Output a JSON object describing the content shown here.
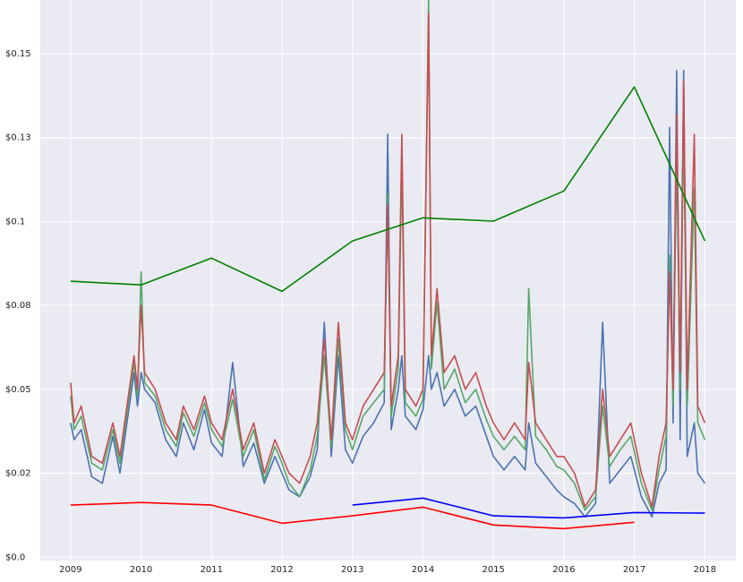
{
  "chart_data": {
    "type": "line",
    "xlim": [
      2008.57,
      2018.44
    ],
    "ylim": [
      -0.001,
      0.166
    ],
    "xticks": [
      2009,
      2010,
      2011,
      2012,
      2013,
      2014,
      2015,
      2016,
      2017,
      2018
    ],
    "yticks": [
      {
        "value": 0,
        "label": "$0.0"
      },
      {
        "value": 0.025,
        "label": "$0.02"
      },
      {
        "value": 0.05,
        "label": "$0.05"
      },
      {
        "value": 0.075,
        "label": "$0.08"
      },
      {
        "value": 0.1,
        "label": "$0.1"
      },
      {
        "value": 0.125,
        "label": "$0.13"
      },
      {
        "value": 0.15,
        "label": "$0.15"
      }
    ],
    "grid": true,
    "series": [
      {
        "color": "#4c72b0",
        "x": [
          2009.0,
          2009.05,
          2009.15,
          2009.3,
          2009.45,
          2009.6,
          2009.7,
          2009.8,
          2009.9,
          2009.95,
          2010.0,
          2010.05,
          2010.2,
          2010.35,
          2010.5,
          2010.6,
          2010.75,
          2010.9,
          2011.0,
          2011.15,
          2011.3,
          2011.45,
          2011.6,
          2011.75,
          2011.9,
          2012.0,
          2012.1,
          2012.25,
          2012.4,
          2012.5,
          2012.6,
          2012.7,
          2012.8,
          2012.9,
          2013.0,
          2013.15,
          2013.3,
          2013.45,
          2013.5,
          2013.55,
          2013.65,
          2013.7,
          2013.75,
          2013.9,
          2014.0,
          2014.08,
          2014.12,
          2014.2,
          2014.3,
          2014.45,
          2014.6,
          2014.75,
          2014.9,
          2015.0,
          2015.15,
          2015.3,
          2015.45,
          2015.5,
          2015.6,
          2015.75,
          2015.9,
          2016.0,
          2016.15,
          2016.3,
          2016.45,
          2016.55,
          2016.65,
          2016.8,
          2016.95,
          2017.1,
          2017.25,
          2017.35,
          2017.45,
          2017.5,
          2017.55,
          2017.6,
          2017.65,
          2017.7,
          2017.75,
          2017.85,
          2017.9,
          2018.0
        ],
        "values": [
          0.04,
          0.035,
          0.038,
          0.024,
          0.022,
          0.036,
          0.025,
          0.04,
          0.055,
          0.045,
          0.055,
          0.05,
          0.046,
          0.035,
          0.03,
          0.04,
          0.032,
          0.044,
          0.034,
          0.03,
          0.058,
          0.027,
          0.034,
          0.022,
          0.03,
          0.025,
          0.02,
          0.018,
          0.024,
          0.032,
          0.07,
          0.03,
          0.06,
          0.032,
          0.028,
          0.036,
          0.04,
          0.046,
          0.126,
          0.038,
          0.05,
          0.06,
          0.042,
          0.038,
          0.044,
          0.06,
          0.05,
          0.055,
          0.045,
          0.05,
          0.042,
          0.045,
          0.036,
          0.03,
          0.026,
          0.03,
          0.026,
          0.04,
          0.028,
          0.024,
          0.02,
          0.018,
          0.016,
          0.012,
          0.016,
          0.07,
          0.022,
          0.026,
          0.03,
          0.018,
          0.012,
          0.022,
          0.026,
          0.128,
          0.04,
          0.145,
          0.035,
          0.145,
          0.03,
          0.04,
          0.025,
          0.022
        ]
      },
      {
        "color": "#55a868",
        "x": [
          2009.0,
          2009.05,
          2009.15,
          2009.3,
          2009.45,
          2009.6,
          2009.7,
          2009.8,
          2009.9,
          2009.95,
          2010.0,
          2010.05,
          2010.2,
          2010.35,
          2010.5,
          2010.6,
          2010.75,
          2010.9,
          2011.0,
          2011.15,
          2011.3,
          2011.45,
          2011.6,
          2011.75,
          2011.9,
          2012.0,
          2012.1,
          2012.25,
          2012.4,
          2012.5,
          2012.6,
          2012.7,
          2012.8,
          2012.9,
          2013.0,
          2013.15,
          2013.3,
          2013.45,
          2013.5,
          2013.55,
          2013.65,
          2013.7,
          2013.75,
          2013.9,
          2014.0,
          2014.08,
          2014.12,
          2014.2,
          2014.3,
          2014.45,
          2014.6,
          2014.75,
          2014.9,
          2015.0,
          2015.15,
          2015.3,
          2015.45,
          2015.5,
          2015.6,
          2015.75,
          2015.9,
          2016.0,
          2016.15,
          2016.3,
          2016.45,
          2016.55,
          2016.65,
          2016.8,
          2016.95,
          2017.1,
          2017.25,
          2017.35,
          2017.45,
          2017.5,
          2017.55,
          2017.6,
          2017.65,
          2017.7,
          2017.75,
          2017.85,
          2017.9,
          2018.0
        ],
        "values": [
          0.048,
          0.038,
          0.042,
          0.028,
          0.026,
          0.038,
          0.028,
          0.043,
          0.058,
          0.048,
          0.085,
          0.052,
          0.048,
          0.038,
          0.033,
          0.043,
          0.036,
          0.046,
          0.038,
          0.033,
          0.047,
          0.03,
          0.038,
          0.023,
          0.033,
          0.028,
          0.022,
          0.018,
          0.026,
          0.036,
          0.06,
          0.033,
          0.065,
          0.038,
          0.032,
          0.042,
          0.046,
          0.05,
          0.108,
          0.042,
          0.056,
          0.118,
          0.046,
          0.042,
          0.047,
          0.166,
          0.056,
          0.076,
          0.05,
          0.056,
          0.046,
          0.05,
          0.041,
          0.036,
          0.032,
          0.036,
          0.032,
          0.08,
          0.036,
          0.032,
          0.027,
          0.026,
          0.022,
          0.014,
          0.018,
          0.045,
          0.027,
          0.032,
          0.036,
          0.022,
          0.014,
          0.026,
          0.036,
          0.09,
          0.045,
          0.12,
          0.05,
          0.13,
          0.045,
          0.11,
          0.04,
          0.035
        ]
      },
      {
        "color": "#c44e52",
        "x": [
          2009.0,
          2009.05,
          2009.15,
          2009.3,
          2009.45,
          2009.6,
          2009.7,
          2009.8,
          2009.9,
          2009.95,
          2010.0,
          2010.05,
          2010.2,
          2010.35,
          2010.5,
          2010.6,
          2010.75,
          2010.9,
          2011.0,
          2011.15,
          2011.3,
          2011.45,
          2011.6,
          2011.75,
          2011.9,
          2012.0,
          2012.1,
          2012.25,
          2012.4,
          2012.5,
          2012.6,
          2012.7,
          2012.8,
          2012.9,
          2013.0,
          2013.15,
          2013.3,
          2013.45,
          2013.5,
          2013.55,
          2013.65,
          2013.7,
          2013.75,
          2013.9,
          2014.0,
          2014.08,
          2014.12,
          2014.2,
          2014.3,
          2014.45,
          2014.6,
          2014.75,
          2014.9,
          2015.0,
          2015.15,
          2015.3,
          2015.45,
          2015.5,
          2015.6,
          2015.75,
          2015.9,
          2016.0,
          2016.15,
          2016.3,
          2016.45,
          2016.55,
          2016.65,
          2016.8,
          2016.95,
          2017.1,
          2017.25,
          2017.35,
          2017.45,
          2017.5,
          2017.55,
          2017.6,
          2017.65,
          2017.7,
          2017.75,
          2017.85,
          2017.9,
          2018.0
        ],
        "values": [
          0.052,
          0.04,
          0.045,
          0.03,
          0.028,
          0.04,
          0.03,
          0.045,
          0.06,
          0.05,
          0.075,
          0.055,
          0.05,
          0.04,
          0.035,
          0.045,
          0.038,
          0.048,
          0.04,
          0.035,
          0.05,
          0.032,
          0.04,
          0.025,
          0.035,
          0.03,
          0.025,
          0.022,
          0.03,
          0.04,
          0.065,
          0.035,
          0.07,
          0.04,
          0.035,
          0.045,
          0.05,
          0.055,
          0.105,
          0.045,
          0.06,
          0.126,
          0.05,
          0.045,
          0.05,
          0.162,
          0.06,
          0.08,
          0.055,
          0.06,
          0.05,
          0.055,
          0.045,
          0.04,
          0.035,
          0.04,
          0.035,
          0.058,
          0.04,
          0.035,
          0.03,
          0.03,
          0.025,
          0.015,
          0.02,
          0.05,
          0.03,
          0.035,
          0.04,
          0.025,
          0.015,
          0.03,
          0.04,
          0.085,
          0.05,
          0.132,
          0.055,
          0.142,
          0.05,
          0.126,
          0.045,
          0.04
        ]
      },
      {
        "color": "green",
        "x": [
          2009,
          2010,
          2011,
          2012,
          2013,
          2014,
          2015,
          2016,
          2017,
          2018
        ],
        "values": [
          0.0822,
          0.0811,
          0.0891,
          0.0792,
          0.0942,
          0.1011,
          0.1001,
          0.1091,
          0.1401,
          0.0942
        ]
      },
      {
        "color": "red",
        "x": [
          2009,
          2010,
          2011,
          2012,
          2013,
          2014,
          2015,
          2016,
          2017
        ],
        "values": [
          0.0155,
          0.0163,
          0.0155,
          0.0101,
          0.0123,
          0.0149,
          0.0096,
          0.0085,
          0.0104
        ]
      },
      {
        "color": "blue",
        "x": [
          2013,
          2014,
          2015,
          2016,
          2017,
          2018
        ],
        "values": [
          0.0155,
          0.0176,
          0.0123,
          0.0117,
          0.0133,
          0.0131
        ]
      }
    ]
  }
}
